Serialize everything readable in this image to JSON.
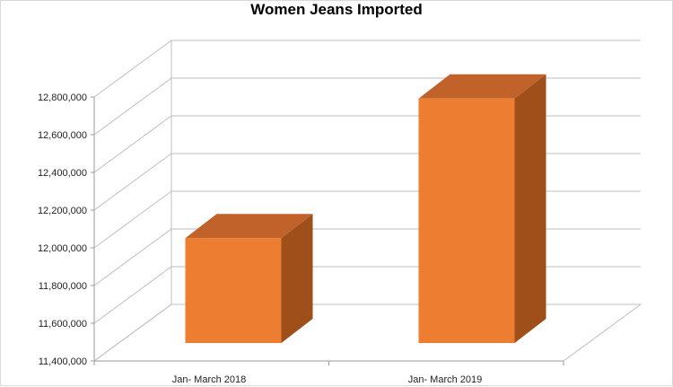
{
  "chart_data": {
    "type": "bar",
    "title": "Women Jeans Imported",
    "categories": [
      "Jan- March 2018",
      "Jan- March 2019"
    ],
    "values": [
      11980000,
      12720000
    ],
    "ylim": [
      11400000,
      12800000
    ],
    "yticks": [
      11400000,
      11600000,
      11800000,
      12000000,
      12200000,
      12400000,
      12600000,
      12800000
    ],
    "ytick_labels": [
      "11,400,000",
      "11,600,000",
      "11,800,000",
      "12,000,000",
      "12,200,000",
      "12,400,000",
      "12,600,000",
      "12,800,000"
    ],
    "grid": true,
    "style": "3d-column",
    "colors": {
      "front": "#ed7d31",
      "side": "#9e4f1a",
      "top": "#c0622a",
      "grid": "#bfbfbf"
    }
  }
}
